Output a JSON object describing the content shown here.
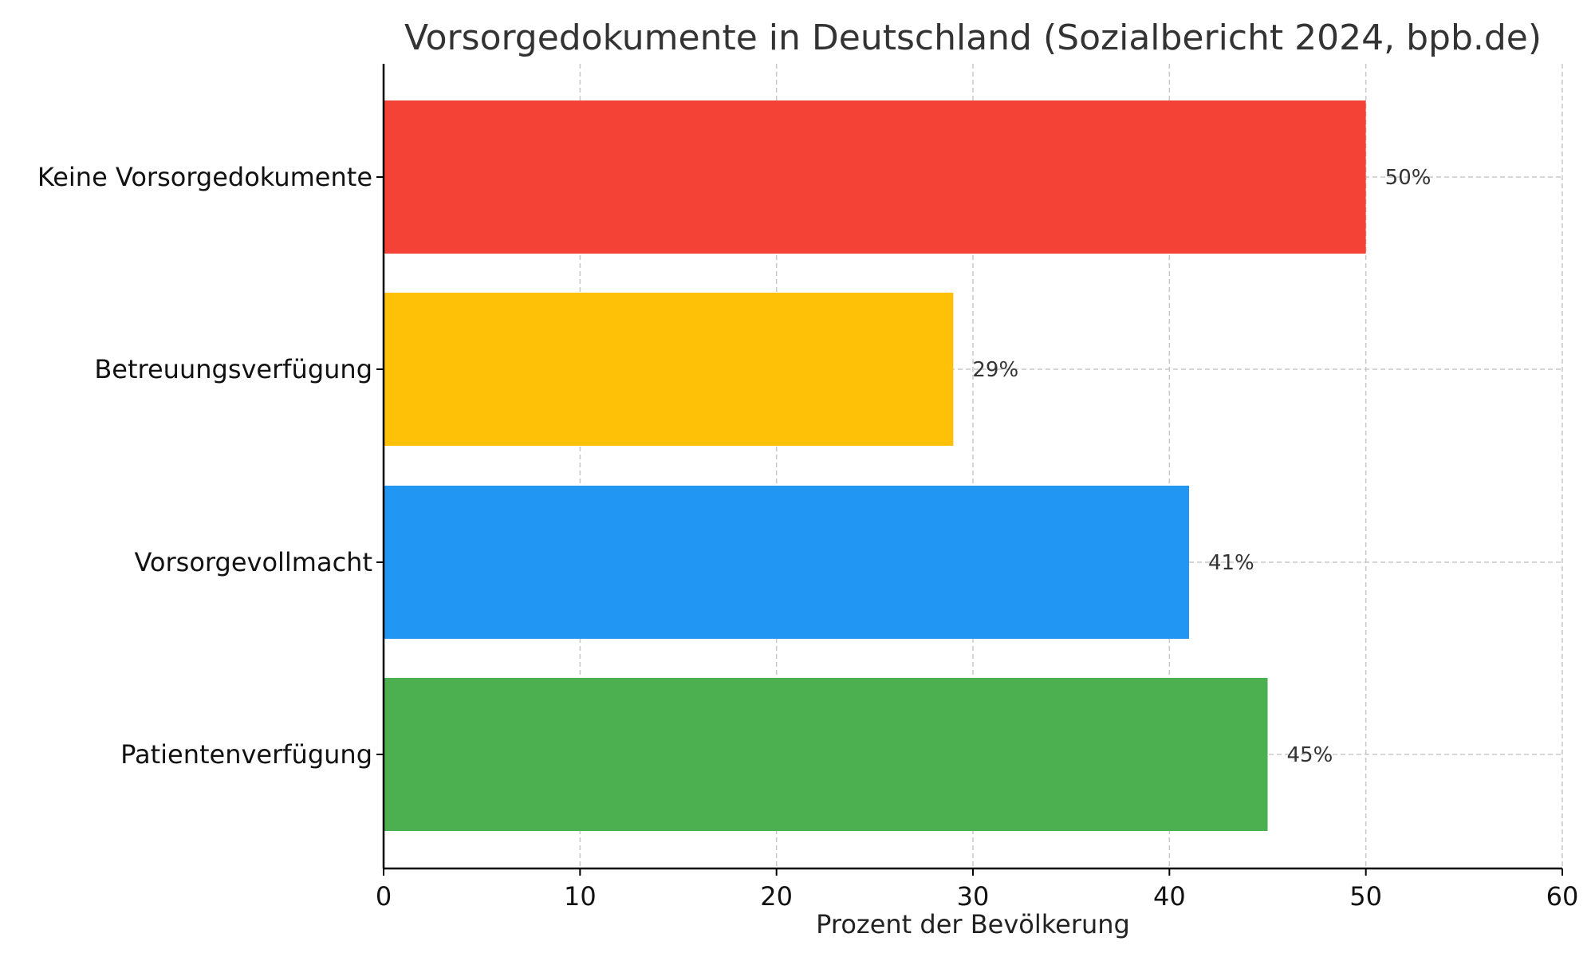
{
  "chart_data": {
    "type": "bar",
    "orientation": "horizontal",
    "title": "Vorsorgedokumente in Deutschland (Sozialbericht 2024, bpb.de)",
    "xlabel": "Prozent der Bevölkerung",
    "ylabel": "",
    "xlim": [
      0,
      60
    ],
    "xticks": [
      "0",
      "10",
      "20",
      "30",
      "40",
      "50",
      "60"
    ],
    "categories": [
      "Patientenverfügung",
      "Vorsorgevollmacht",
      "Betreuungsverfügung",
      "Keine Vorsorgedokumente"
    ],
    "values": [
      45,
      41,
      29,
      50
    ],
    "data_labels": [
      "45%",
      "41%",
      "29%",
      "50%"
    ],
    "colors": [
      "#4caf50",
      "#2196f3",
      "#ffc107",
      "#f44336"
    ],
    "grid": true,
    "grid_color": "#c8c8c8",
    "grid_style": "dashed",
    "legend": false
  }
}
